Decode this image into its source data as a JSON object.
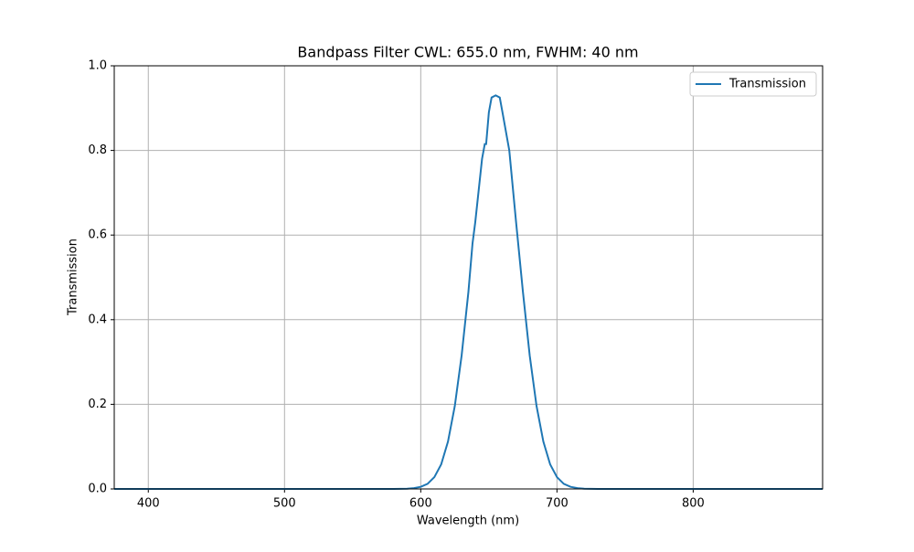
{
  "chart_data": {
    "type": "line",
    "title": "Bandpass Filter CWL: 655.0 nm, FWHM: 40 nm",
    "x_label": "Wavelength (nm)",
    "y_label": "Transmission",
    "x": [
      375,
      450,
      500,
      550,
      580,
      590,
      595,
      600,
      605,
      610,
      615,
      620,
      625,
      630,
      635,
      638,
      640,
      645,
      647,
      648,
      650,
      652,
      655,
      658,
      660,
      665,
      670,
      675,
      680,
      685,
      690,
      695,
      700,
      705,
      710,
      715,
      720,
      730,
      750,
      800,
      895
    ],
    "series": [
      {
        "name": "Transmission",
        "color": "#1f77b4",
        "values": [
          0,
          0,
          0,
          0,
          0,
          0.0006,
          0.002,
          0.005,
          0.012,
          0.028,
          0.058,
          0.112,
          0.196,
          0.315,
          0.466,
          0.58,
          0.63,
          0.78,
          0.815,
          0.815,
          0.89,
          0.925,
          0.93,
          0.925,
          0.89,
          0.8,
          0.63,
          0.466,
          0.315,
          0.196,
          0.112,
          0.058,
          0.028,
          0.012,
          0.005,
          0.002,
          0.0006,
          0,
          0,
          0,
          0
        ]
      }
    ],
    "xlim": [
      375,
      895
    ],
    "ylim": [
      0,
      1
    ],
    "xticks": [
      400,
      500,
      600,
      700,
      800
    ],
    "yticks": [
      {
        "value": 0,
        "label": "0.0"
      },
      {
        "value": 0.2,
        "label": "0.2"
      },
      {
        "value": 0.4,
        "label": "0.4"
      },
      {
        "value": 0.6,
        "label": "0.6"
      },
      {
        "value": 0.8,
        "label": "0.8"
      },
      {
        "value": 1,
        "label": "1.0"
      }
    ],
    "grid": true,
    "legend": "upper right"
  }
}
